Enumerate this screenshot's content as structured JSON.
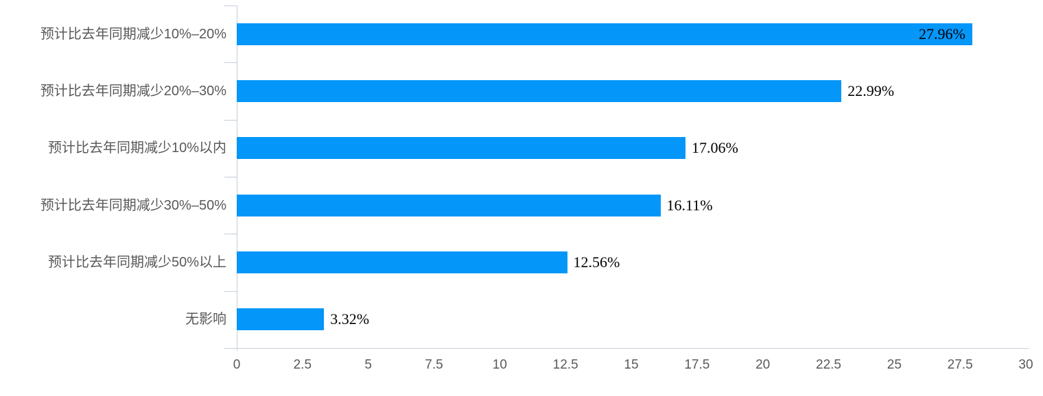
{
  "chart": {
    "background": "#ffffff",
    "bar_color": "#0596f9",
    "axis_line_color": "#c5ced8",
    "axis_text_color": "#595959",
    "value_label_color": "#000000"
  },
  "chart_data": {
    "type": "bar",
    "orientation": "horizontal",
    "title": "",
    "xlabel": "",
    "ylabel": "",
    "grid": false,
    "legend": null,
    "categories": [
      "预计比去年同期减少10%–20%",
      "预计比去年同期减少20%–30%",
      "预计比去年同期减少10%以内",
      "预计比去年同期减少30%–50%",
      "预计比去年同期减少50%以上",
      "无影响"
    ],
    "values": [
      27.96,
      22.99,
      17.06,
      16.11,
      12.56,
      3.32
    ],
    "value_labels": [
      "27.96%",
      "22.99%",
      "17.06%",
      "16.11%",
      "12.56%",
      "3.32%"
    ],
    "value_label_inside": [
      true,
      false,
      false,
      false,
      false,
      false
    ],
    "xlim": [
      0,
      30
    ],
    "xticks": [
      0,
      2.5,
      5,
      7.5,
      10,
      12.5,
      15,
      17.5,
      20,
      22.5,
      25,
      27.5,
      30
    ],
    "xtick_labels": [
      "0",
      "2.5",
      "5",
      "7.5",
      "10",
      "12.5",
      "15",
      "17.5",
      "20",
      "22.5",
      "25",
      "27.5",
      "30"
    ]
  }
}
